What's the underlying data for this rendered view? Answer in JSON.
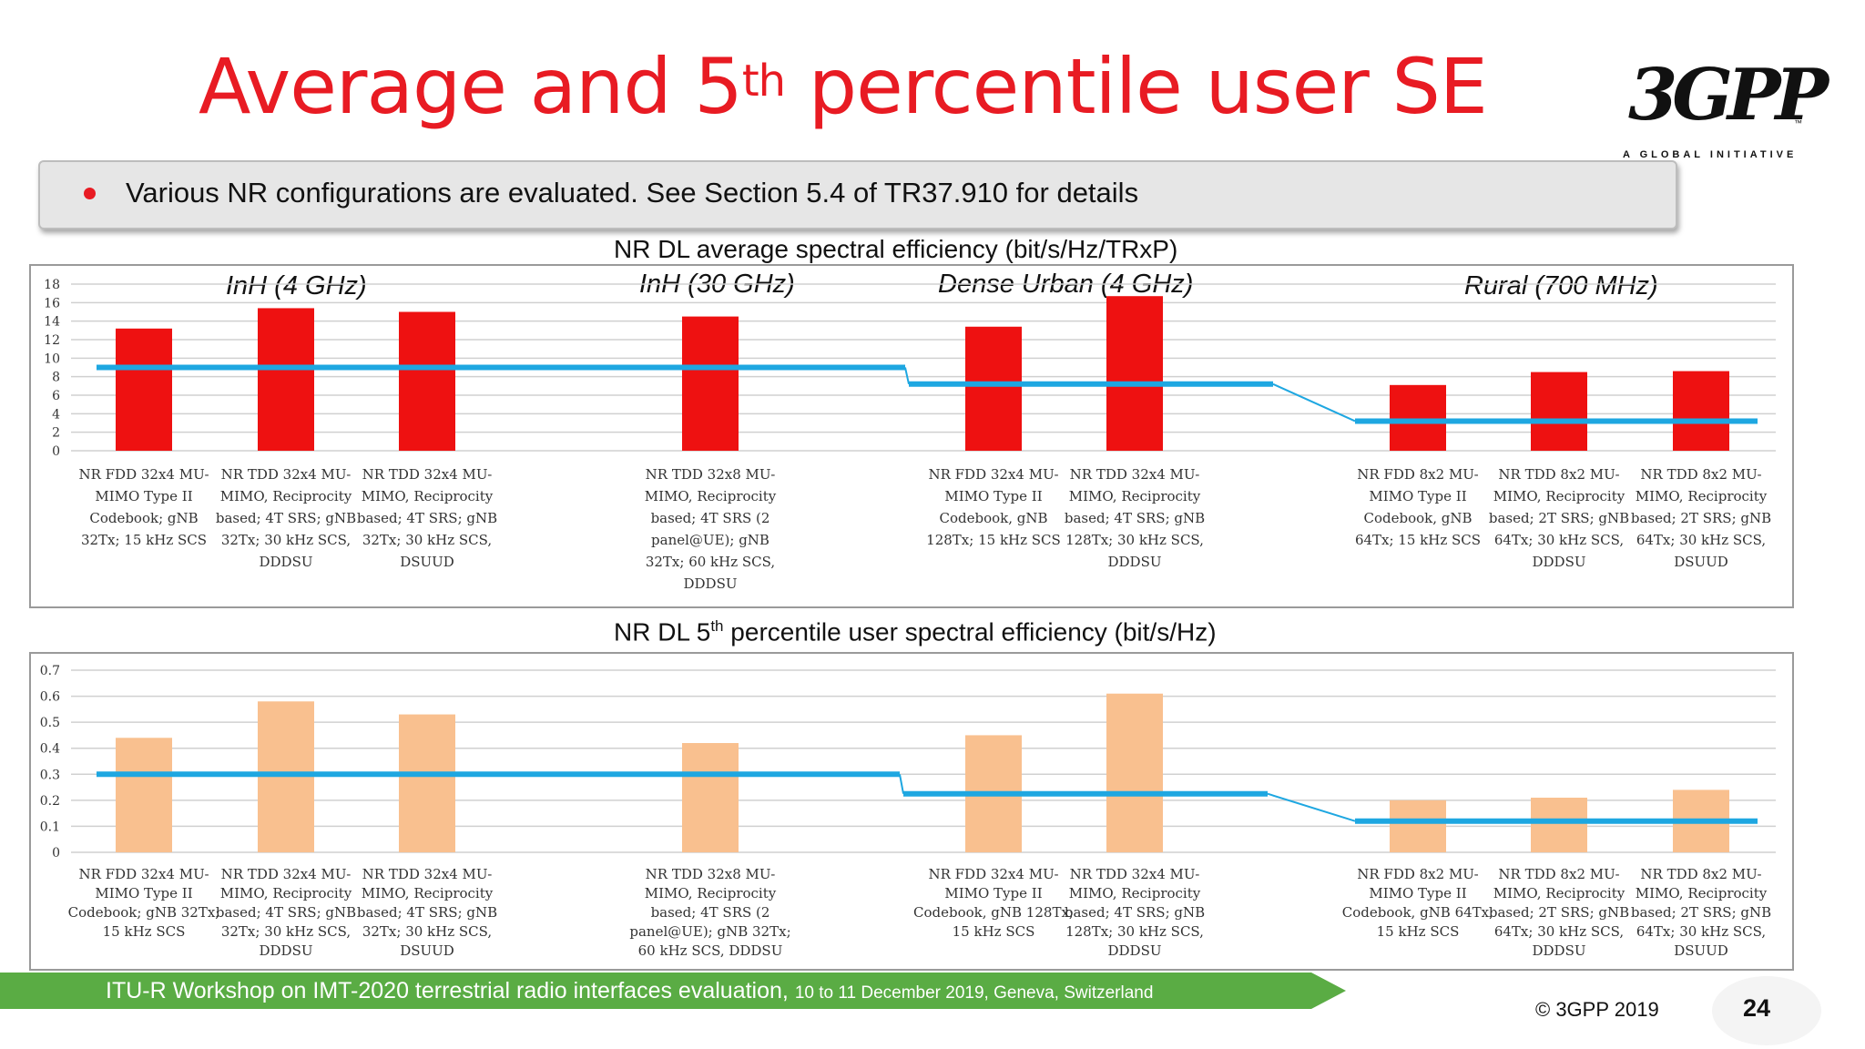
{
  "slide": {
    "title_main": "Average and 5",
    "title_sup": "th",
    "title_rest": " percentile user SE",
    "logo_text": "3GPP",
    "logo_tm": "™",
    "logo_tagline": "A GLOBAL INITIATIVE",
    "bullet": "Various NR configurations are evaluated. See Section 5.4 of TR37.910 for details",
    "footer_main": "ITU-R Workshop on IMT-2020 terrestrial radio interfaces evaluation, ",
    "footer_small": "10 to 11 December 2019, Geneva, Switzerland",
    "copyright": "© 3GPP 2019",
    "page_number": "24"
  },
  "colors": {
    "title": "#e81b23",
    "avg_bar": "#ee1111",
    "p5_bar": "#f9c08f",
    "ref_line": "#1ea7e1",
    "footer_green": "#5aac44"
  },
  "regions": {
    "inh4": "InH (4 GHz)",
    "inh30": "InH (30 GHz)",
    "du": "Dense Urban (4 GHz)",
    "rural": "Rural (700 MHz)"
  },
  "chart_data": [
    {
      "type": "bar",
      "title": "NR DL average spectral efficiency (bit/s/Hz/TRxP)",
      "ylim": [
        0,
        18
      ],
      "yticks": [
        0,
        2,
        4,
        6,
        8,
        10,
        12,
        14,
        16,
        18
      ],
      "grid": true,
      "categories": [
        [
          "NR FDD 32x4 MU-",
          "MIMO Type II",
          "Codebook; gNB",
          "32Tx; 15 kHz SCS"
        ],
        [
          "NR TDD 32x4 MU-",
          "MIMO, Reciprocity",
          "based; 4T SRS; gNB",
          "32Tx; 30 kHz SCS,",
          "DDDSU"
        ],
        [
          "NR TDD 32x4 MU-",
          "MIMO, Reciprocity",
          "based; 4T SRS; gNB",
          "32Tx; 30 kHz SCS,",
          "DSUUD"
        ],
        [
          "NR TDD 32x8 MU-",
          "MIMO, Reciprocity",
          "based; 4T SRS (2",
          "panel@UE); gNB",
          "32Tx; 60 kHz SCS,",
          "DDDSU"
        ],
        [
          "NR FDD 32x4 MU-",
          "MIMO Type II",
          "Codebook, gNB",
          "128Tx; 15 kHz SCS"
        ],
        [
          "NR TDD 32x4 MU-",
          "MIMO, Reciprocity",
          "based; 4T SRS; gNB",
          "128Tx; 30 kHz SCS,",
          "DDDSU"
        ],
        [
          "NR FDD 8x2 MU-",
          "MIMO Type II",
          "Codebook, gNB",
          "64Tx; 15 kHz SCS"
        ],
        [
          "NR TDD 8x2 MU-",
          "MIMO, Reciprocity",
          "based; 2T SRS; gNB",
          "64Tx; 30 kHz SCS,",
          "DDDSU"
        ],
        [
          "NR TDD 8x2 MU-",
          "MIMO, Reciprocity",
          "based; 2T SRS; gNB",
          "64Tx; 30 kHz SCS,",
          "DSUUD"
        ]
      ],
      "values": [
        13.2,
        15.4,
        15.0,
        14.5,
        13.4,
        16.7,
        7.1,
        8.5,
        8.6
      ],
      "requirement": {
        "InH": 9.0,
        "Dense Urban": 7.2,
        "Rural": 3.2
      }
    },
    {
      "type": "bar",
      "title_main": "NR DL 5",
      "title_sup": "th",
      "title_rest": " percentile user spectral efficiency (bit/s/Hz)",
      "ylim": [
        0,
        0.7
      ],
      "yticks": [
        0,
        0.1,
        0.2,
        0.3,
        0.4,
        0.5,
        0.6,
        0.7
      ],
      "grid": true,
      "categories": [
        [
          "NR FDD 32x4 MU-",
          "MIMO Type II",
          "Codebook; gNB 32Tx;",
          "15 kHz SCS"
        ],
        [
          "NR TDD 32x4 MU-",
          "MIMO, Reciprocity",
          "based; 4T SRS; gNB",
          "32Tx; 30 kHz SCS,",
          "DDDSU"
        ],
        [
          "NR TDD 32x4 MU-",
          "MIMO, Reciprocity",
          "based; 4T SRS; gNB",
          "32Tx; 30 kHz SCS,",
          "DSUUD"
        ],
        [
          "NR TDD 32x8 MU-",
          "MIMO, Reciprocity",
          "based; 4T SRS (2",
          "panel@UE); gNB 32Tx;",
          "60 kHz SCS, DDDSU"
        ],
        [
          "NR FDD 32x4 MU-",
          "MIMO Type II",
          "Codebook, gNB 128Tx;",
          "15 kHz SCS"
        ],
        [
          "NR TDD 32x4 MU-",
          "MIMO, Reciprocity",
          "based; 4T SRS; gNB",
          "128Tx; 30 kHz SCS,",
          "DDDSU"
        ],
        [
          "NR FDD 8x2 MU-",
          "MIMO Type II",
          "Codebook, gNB 64Tx;",
          "15 kHz SCS"
        ],
        [
          "NR TDD 8x2 MU-",
          "MIMO, Reciprocity",
          "based; 2T SRS; gNB",
          "64Tx; 30 kHz SCS,",
          "DDDSU"
        ],
        [
          "NR TDD 8x2 MU-",
          "MIMO, Reciprocity",
          "based; 2T SRS; gNB",
          "64Tx; 30 kHz SCS,",
          "DSUUD"
        ]
      ],
      "values": [
        0.44,
        0.58,
        0.53,
        0.42,
        0.45,
        0.61,
        0.2,
        0.21,
        0.24
      ],
      "requirement": {
        "InH": 0.3,
        "Dense Urban": 0.225,
        "Rural": 0.12
      }
    }
  ]
}
